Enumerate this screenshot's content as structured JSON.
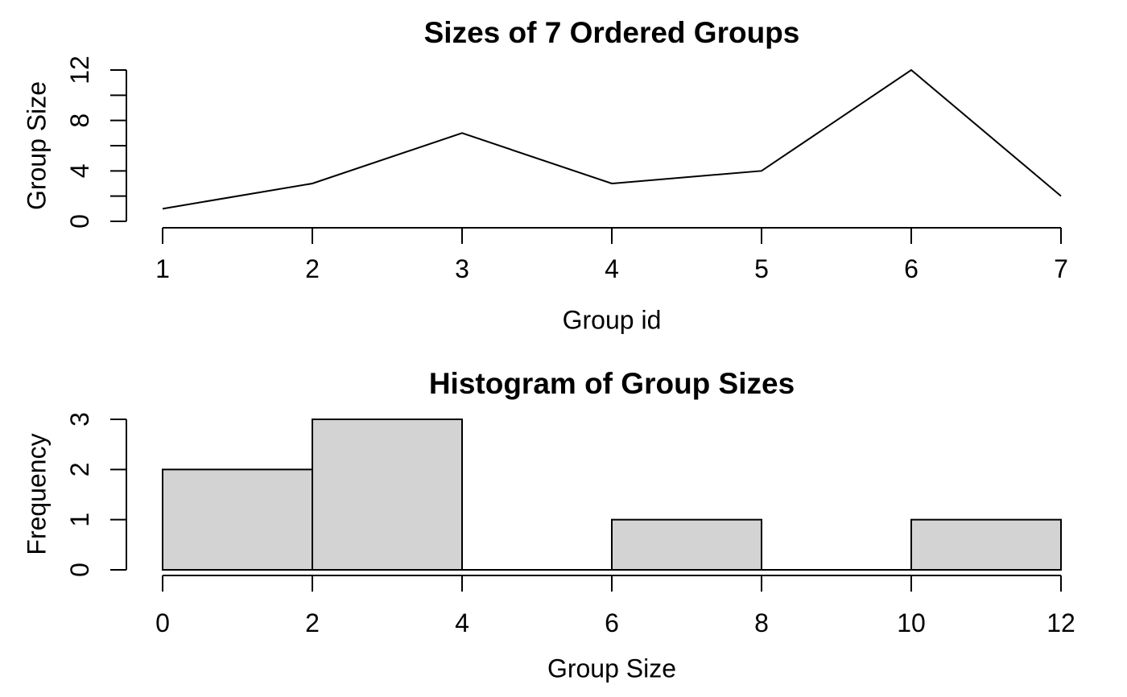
{
  "figure": {
    "background": "#ffffff",
    "foreground": "#000000"
  },
  "chart_data": [
    {
      "type": "line",
      "title": "Sizes of 7 Ordered Groups",
      "xlabel": "Group id",
      "ylabel": "Group Size",
      "x": [
        1,
        2,
        3,
        4,
        5,
        6,
        7
      ],
      "values": [
        1,
        3,
        7,
        3,
        4,
        12,
        2
      ],
      "xlim": [
        1,
        7
      ],
      "ylim": [
        0,
        12
      ],
      "x_ticks": [
        1,
        2,
        3,
        4,
        5,
        6,
        7
      ],
      "x_tick_labels": [
        "1",
        "2",
        "3",
        "4",
        "5",
        "6",
        "7"
      ],
      "y_ticks": [
        0,
        2,
        4,
        6,
        8,
        10,
        12
      ],
      "y_tick_labels": [
        "0",
        "",
        "4",
        "",
        "8",
        "",
        "12"
      ],
      "line_color": "#000000",
      "grid": "off",
      "legend": "none"
    },
    {
      "type": "bar",
      "title": "Histogram of Group Sizes",
      "xlabel": "Group Size",
      "ylabel": "Frequency",
      "bins": [
        {
          "from": 0,
          "to": 2,
          "count": 2
        },
        {
          "from": 2,
          "to": 4,
          "count": 3
        },
        {
          "from": 4,
          "to": 6,
          "count": 0
        },
        {
          "from": 6,
          "to": 8,
          "count": 1
        },
        {
          "from": 8,
          "to": 10,
          "count": 0
        },
        {
          "from": 10,
          "to": 12,
          "count": 1
        }
      ],
      "xlim": [
        0,
        12
      ],
      "ylim": [
        0,
        3
      ],
      "x_ticks": [
        0,
        2,
        4,
        6,
        8,
        10,
        12
      ],
      "x_tick_labels": [
        "0",
        "2",
        "4",
        "6",
        "8",
        "10",
        "12"
      ],
      "y_ticks": [
        0,
        1,
        2,
        3
      ],
      "y_tick_labels": [
        "0",
        "1",
        "2",
        "3"
      ],
      "bar_fill": "#D3D3D3",
      "bar_stroke": "#000000",
      "grid": "off",
      "legend": "none"
    }
  ]
}
